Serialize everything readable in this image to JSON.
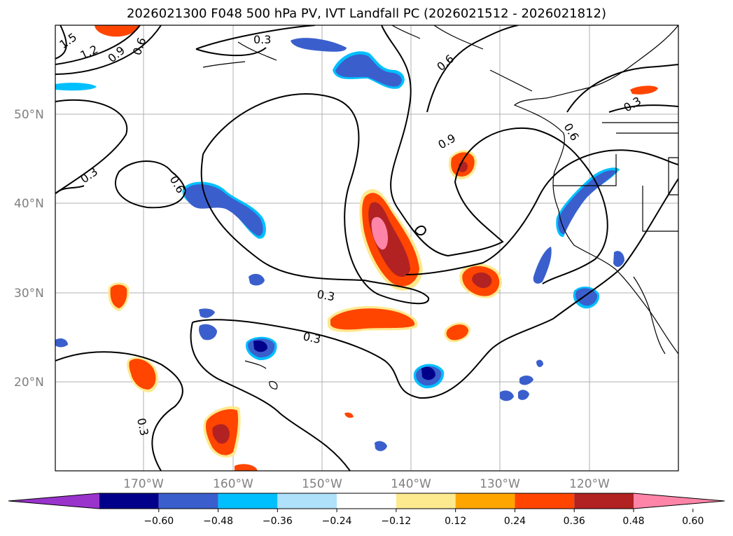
{
  "title": "2026021300 F048 500 hPa PV, IVT Landfall PC (2026021512 - 2026021812)",
  "lat_ticks": [
    "50°N",
    "40°N",
    "30°N",
    "20°N"
  ],
  "lon_ticks": [
    "170°W",
    "160°W",
    "150°W",
    "140°W",
    "130°W",
    "120°W"
  ],
  "contour_labels": [
    "1.5",
    "1.2",
    "0.9",
    "0.6",
    "0.3",
    "0.6",
    "0.9",
    "0.6",
    "0.3",
    "0.3",
    "0.6",
    "0.3",
    "0.3",
    "0.3"
  ],
  "colorbar": {
    "ticks": [
      "−0.60",
      "−0.48",
      "−0.36",
      "−0.24",
      "−0.12",
      "0.12",
      "0.24",
      "0.36",
      "0.48",
      "0.60"
    ],
    "colors": [
      "#9933cc",
      "#00008b",
      "#3a5fcd",
      "#00bfff",
      "#afe1fa",
      "#ffffff",
      "#fde98e",
      "#ffa500",
      "#ff4500",
      "#b22222",
      "#ff85a8"
    ]
  },
  "colors": {
    "grid": "#b0b0b0",
    "contour": "#000000",
    "coast": "#000000"
  }
}
